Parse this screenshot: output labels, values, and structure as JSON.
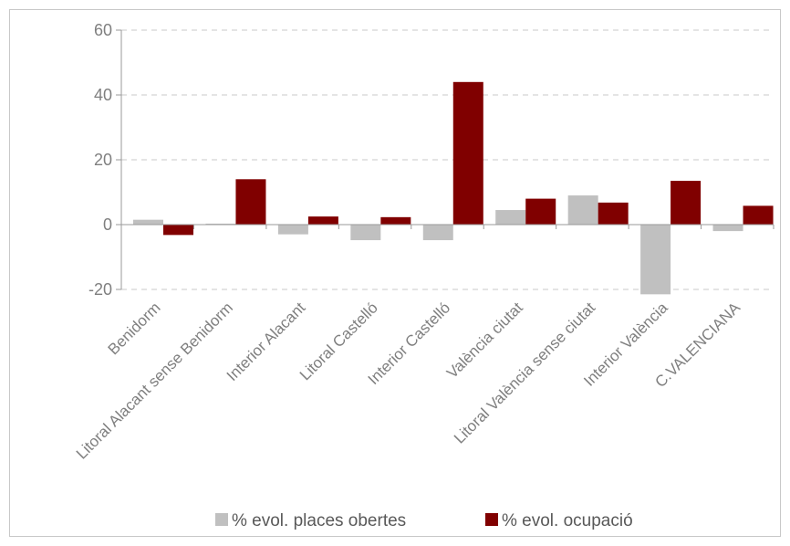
{
  "chart_data": {
    "type": "bar",
    "categories": [
      "Benidorm",
      "Litoral Alacant sense Benidorm",
      "Interior Alacant",
      "Litoral Castelló",
      "Interior Castelló",
      "València ciutat",
      "Litoral València sense ciutat",
      "Interior València",
      "C.VALENCIANA"
    ],
    "series": [
      {
        "name": "% evol. places obertes",
        "color": "#c0c0c0",
        "values": [
          1.5,
          0.3,
          -3.0,
          -4.8,
          -4.8,
          4.5,
          9.0,
          -21.5,
          -2.0
        ]
      },
      {
        "name": "% evol. ocupació",
        "color": "#800000",
        "values": [
          -3.2,
          14.0,
          2.5,
          2.3,
          44.0,
          8.0,
          6.8,
          13.5,
          5.8
        ]
      }
    ],
    "yticks": [
      -20,
      0,
      20,
      40,
      60
    ],
    "ylim": [
      -20,
      60
    ],
    "grid": true,
    "legend_position": "bottom"
  }
}
